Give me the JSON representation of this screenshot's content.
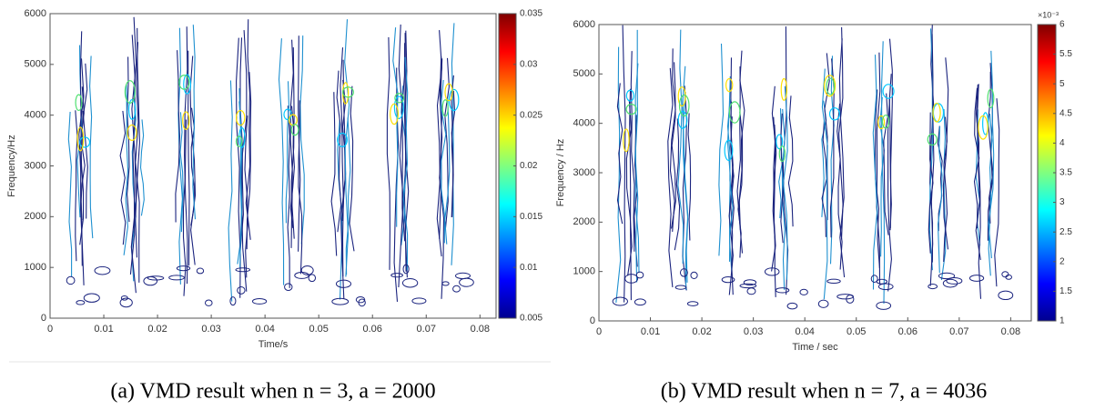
{
  "chart_data": [
    {
      "type": "contour",
      "caption": "(a) VMD result when n = 3, a = 2000",
      "xlabel": "Time/s",
      "ylabel": "Frequency/Hz",
      "xlim": [
        0,
        0.083
      ],
      "xticks": [
        0,
        0.01,
        0.02,
        0.03,
        0.04,
        0.05,
        0.06,
        0.07,
        0.08
      ],
      "ylim": [
        0,
        6000
      ],
      "yticks": [
        0,
        1000,
        2000,
        3000,
        4000,
        5000,
        6000
      ],
      "clim": [
        0.005,
        0.035
      ],
      "cticks": [
        0.005,
        0.01,
        0.015,
        0.02,
        0.025,
        0.03,
        0.035
      ],
      "colormap": "jet"
    },
    {
      "type": "contour",
      "caption": "(b) VMD result when n = 7, a = 4036",
      "xlabel": "Time / sec",
      "ylabel": "Frequency / Hz",
      "xlim": [
        0,
        0.084
      ],
      "xticks": [
        0,
        0.01,
        0.02,
        0.03,
        0.04,
        0.05,
        0.06,
        0.07,
        0.08
      ],
      "ylim": [
        0,
        6000
      ],
      "yticks": [
        0,
        1000,
        2000,
        3000,
        4000,
        5000,
        6000
      ],
      "clim": [
        1,
        6
      ],
      "cticks": [
        1,
        1.5,
        2,
        2.5,
        3,
        3.5,
        4,
        4.5,
        5,
        5.5,
        6
      ],
      "colorbar_exponent": "×10⁻³",
      "colormap": "jet"
    }
  ]
}
